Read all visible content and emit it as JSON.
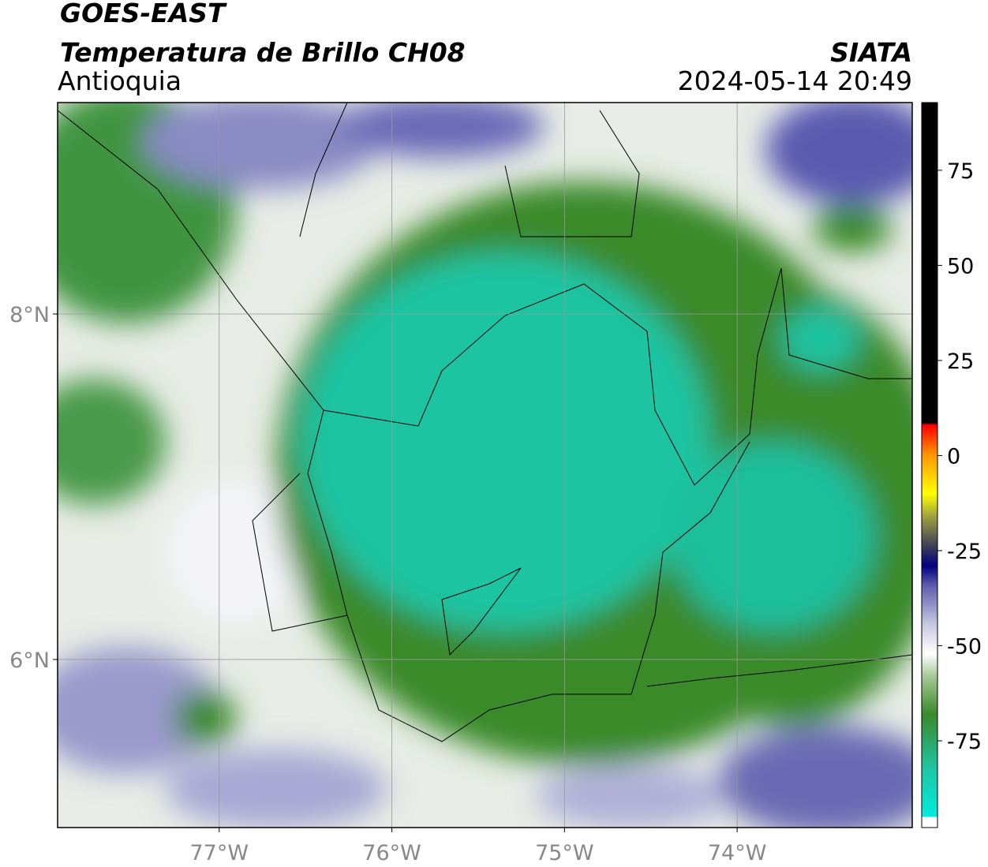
{
  "header": {
    "title": "GOES-EAST",
    "subtitle": "Temperatura de Brillo CH08",
    "region": "Antioquia",
    "source": "SIATA",
    "timestamp": "2024-05-14 20:49"
  },
  "map": {
    "lonlim": [
      -77.936,
      -72.986
    ],
    "latlim": [
      5.027,
      9.224
    ],
    "lonticks": [
      {
        "value": -77,
        "label": "77°W"
      },
      {
        "value": -76,
        "label": "76°W"
      },
      {
        "value": -75,
        "label": "75°W"
      },
      {
        "value": -74,
        "label": "74°W"
      }
    ],
    "latticks": [
      {
        "value": 8,
        "label": "8°N"
      },
      {
        "value": 6,
        "label": "6°N"
      }
    ],
    "grid": true
  },
  "colorbar": {
    "lim": [
      -97.8,
      92.8
    ],
    "ticks": [
      75,
      50,
      25,
      0,
      -25,
      -50,
      -75
    ],
    "stops": [
      {
        "value": -97.8,
        "color": "#ffffff"
      },
      {
        "value": -95,
        "color": "#ffffff"
      },
      {
        "value": -95,
        "color": "#00ece0"
      },
      {
        "value": -82,
        "color": "#1fc4a2"
      },
      {
        "value": -68,
        "color": "#3a8a2a"
      },
      {
        "value": -58,
        "color": "#a8c898"
      },
      {
        "value": -52,
        "color": "#ffffff"
      },
      {
        "value": -44,
        "color": "#c4c4e0"
      },
      {
        "value": -34,
        "color": "#5a5aac"
      },
      {
        "value": -29,
        "color": "#000080"
      },
      {
        "value": -24,
        "color": "#3c3c58"
      },
      {
        "value": -16,
        "color": "#a0a040"
      },
      {
        "value": -10,
        "color": "#ffff00"
      },
      {
        "value": 0,
        "color": "#ff9900"
      },
      {
        "value": 8,
        "color": "#ff0000"
      },
      {
        "value": 8.6,
        "color": "#000000"
      },
      {
        "value": 92.8,
        "color": "#000000"
      }
    ]
  }
}
